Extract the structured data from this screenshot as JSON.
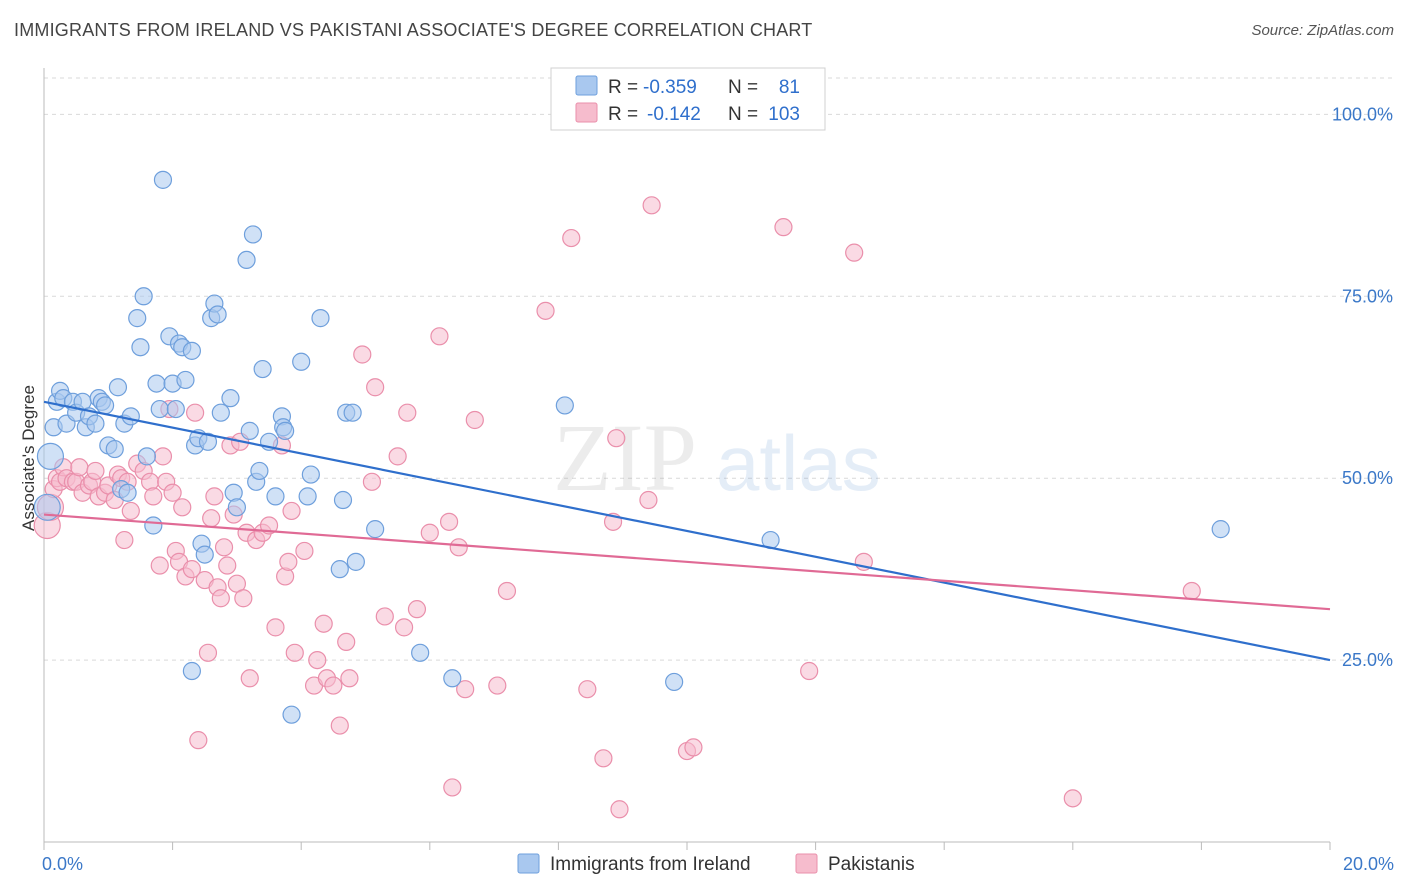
{
  "title": "IMMIGRANTS FROM IRELAND VS PAKISTANI ASSOCIATE'S DEGREE CORRELATION CHART",
  "source": "Source: ZipAtlas.com",
  "colors": {
    "ireland_fill": "#a9c8ef",
    "ireland_stroke": "#6e9fdc",
    "ireland_line": "#2f6fcc",
    "pakistani_fill": "#f6bccd",
    "pakistani_stroke": "#ea8fab",
    "pakistani_line": "#e06a95",
    "value_blue": "#2f6fcc",
    "grid": "#d9d9d9"
  },
  "legend": {
    "rows": [
      {
        "r_label": "R =",
        "r_value": "-0.359",
        "n_label": "N =",
        "n_value": "81"
      },
      {
        "r_label": "R =",
        "r_value": "-0.142",
        "n_label": "N =",
        "n_value": "103"
      }
    ]
  },
  "bottom_legend": {
    "ireland": "Immigrants from Ireland",
    "pakistani": "Pakistanis"
  },
  "watermark": {
    "zip": "ZIP",
    "atlas": "atlas"
  },
  "chart_data": {
    "type": "scatter",
    "title": "IMMIGRANTS FROM IRELAND VS PAKISTANI ASSOCIATE'S DEGREE CORRELATION CHART",
    "xlabel": "",
    "ylabel": "Associate's Degree",
    "xlim": [
      0,
      20
    ],
    "ylim": [
      0,
      105
    ],
    "x_tick_labels": [
      "0.0%",
      "20.0%"
    ],
    "y_ticks": [
      25,
      50,
      75,
      100
    ],
    "y_tick_labels": [
      "25.0%",
      "50.0%",
      "75.0%",
      "100.0%"
    ],
    "grid": true,
    "legend_position": "top-center",
    "series": [
      {
        "name": "Immigrants from Ireland",
        "R": -0.359,
        "N": 81,
        "trend": {
          "x": [
            0,
            20
          ],
          "y": [
            60.5,
            25.0
          ]
        },
        "points": [
          [
            0.05,
            46
          ],
          [
            0.1,
            53
          ],
          [
            0.15,
            57
          ],
          [
            0.2,
            60.5
          ],
          [
            0.25,
            62
          ],
          [
            0.3,
            61
          ],
          [
            0.35,
            57.5
          ],
          [
            0.45,
            60.5
          ],
          [
            0.5,
            59
          ],
          [
            0.6,
            60.5
          ],
          [
            0.65,
            57
          ],
          [
            0.7,
            58.5
          ],
          [
            0.8,
            57.5
          ],
          [
            0.85,
            61
          ],
          [
            0.9,
            60.5
          ],
          [
            0.95,
            60
          ],
          [
            1.0,
            54.5
          ],
          [
            1.1,
            54
          ],
          [
            1.15,
            62.5
          ],
          [
            1.2,
            48.5
          ],
          [
            1.3,
            48
          ],
          [
            1.25,
            57.5
          ],
          [
            1.35,
            58.5
          ],
          [
            1.45,
            72
          ],
          [
            1.5,
            68
          ],
          [
            1.55,
            75
          ],
          [
            1.6,
            53
          ],
          [
            1.7,
            43.5
          ],
          [
            1.75,
            63
          ],
          [
            1.8,
            59.5
          ],
          [
            1.85,
            91
          ],
          [
            1.95,
            69.5
          ],
          [
            2.0,
            63
          ],
          [
            2.05,
            59.5
          ],
          [
            2.1,
            68.5
          ],
          [
            2.15,
            68
          ],
          [
            2.2,
            63.5
          ],
          [
            2.3,
            67.5
          ],
          [
            2.3,
            23.5
          ],
          [
            2.35,
            54.5
          ],
          [
            2.4,
            55.5
          ],
          [
            2.45,
            41
          ],
          [
            2.5,
            39.5
          ],
          [
            2.55,
            55
          ],
          [
            2.6,
            72
          ],
          [
            2.65,
            74
          ],
          [
            2.7,
            72.5
          ],
          [
            2.75,
            59
          ],
          [
            2.9,
            61
          ],
          [
            2.95,
            48
          ],
          [
            3.0,
            46
          ],
          [
            3.15,
            80
          ],
          [
            3.2,
            56.5
          ],
          [
            3.25,
            83.5
          ],
          [
            3.3,
            49.5
          ],
          [
            3.35,
            51
          ],
          [
            3.4,
            65
          ],
          [
            3.5,
            55
          ],
          [
            3.6,
            47.5
          ],
          [
            3.7,
            58.5
          ],
          [
            3.72,
            57
          ],
          [
            3.75,
            56.5
          ],
          [
            3.85,
            17.5
          ],
          [
            4.0,
            66
          ],
          [
            4.1,
            47.5
          ],
          [
            4.15,
            50.5
          ],
          [
            4.3,
            72
          ],
          [
            4.6,
            37.5
          ],
          [
            4.65,
            47
          ],
          [
            4.7,
            59
          ],
          [
            4.8,
            59
          ],
          [
            4.85,
            38.5
          ],
          [
            5.15,
            43
          ],
          [
            5.85,
            26
          ],
          [
            6.35,
            22.5
          ],
          [
            8.1,
            60
          ],
          [
            9.8,
            22
          ],
          [
            11.3,
            41.5
          ],
          [
            18.3,
            43
          ]
        ]
      },
      {
        "name": "Pakistanis",
        "R": -0.142,
        "N": 103,
        "trend": {
          "x": [
            0,
            20
          ],
          "y": [
            45.0,
            32.0
          ]
        },
        "points": [
          [
            0.05,
            43.5
          ],
          [
            0.1,
            46
          ],
          [
            0.15,
            48.5
          ],
          [
            0.2,
            50
          ],
          [
            0.25,
            49.5
          ],
          [
            0.3,
            51.5
          ],
          [
            0.35,
            50
          ],
          [
            0.45,
            49.5
          ],
          [
            0.5,
            49.5
          ],
          [
            0.55,
            51.5
          ],
          [
            0.6,
            48
          ],
          [
            0.7,
            49
          ],
          [
            0.75,
            49.5
          ],
          [
            0.8,
            51
          ],
          [
            0.85,
            47.5
          ],
          [
            0.95,
            48
          ],
          [
            1.0,
            49
          ],
          [
            1.1,
            47
          ],
          [
            1.15,
            50.5
          ],
          [
            1.2,
            50
          ],
          [
            1.25,
            41.5
          ],
          [
            1.3,
            49.5
          ],
          [
            1.35,
            45.5
          ],
          [
            1.45,
            52
          ],
          [
            1.55,
            51
          ],
          [
            1.65,
            49.5
          ],
          [
            1.7,
            47.5
          ],
          [
            1.8,
            38
          ],
          [
            1.85,
            53
          ],
          [
            1.9,
            49.5
          ],
          [
            1.95,
            59.5
          ],
          [
            2.0,
            48
          ],
          [
            2.05,
            40
          ],
          [
            2.1,
            38.5
          ],
          [
            2.15,
            46
          ],
          [
            2.2,
            36.5
          ],
          [
            2.3,
            37.5
          ],
          [
            2.35,
            59
          ],
          [
            2.4,
            14
          ],
          [
            2.5,
            36
          ],
          [
            2.55,
            26
          ],
          [
            2.6,
            44.5
          ],
          [
            2.65,
            47.5
          ],
          [
            2.7,
            35
          ],
          [
            2.75,
            33.5
          ],
          [
            2.8,
            40.5
          ],
          [
            2.85,
            38
          ],
          [
            2.9,
            54.5
          ],
          [
            2.95,
            45
          ],
          [
            3.0,
            35.5
          ],
          [
            3.05,
            55
          ],
          [
            3.1,
            33.5
          ],
          [
            3.15,
            42.5
          ],
          [
            3.2,
            22.5
          ],
          [
            3.3,
            41.5
          ],
          [
            3.4,
            42.5
          ],
          [
            3.5,
            43.5
          ],
          [
            3.6,
            29.5
          ],
          [
            3.7,
            54.5
          ],
          [
            3.75,
            36.5
          ],
          [
            3.8,
            38.5
          ],
          [
            3.85,
            45.5
          ],
          [
            3.9,
            26
          ],
          [
            4.05,
            40
          ],
          [
            4.2,
            21.5
          ],
          [
            4.25,
            25
          ],
          [
            4.35,
            30
          ],
          [
            4.4,
            22.5
          ],
          [
            4.5,
            21.5
          ],
          [
            4.6,
            16
          ],
          [
            4.7,
            27.5
          ],
          [
            4.75,
            22.5
          ],
          [
            4.95,
            67
          ],
          [
            5.1,
            49.5
          ],
          [
            5.15,
            62.5
          ],
          [
            5.3,
            31
          ],
          [
            5.5,
            53
          ],
          [
            5.6,
            29.5
          ],
          [
            5.65,
            59
          ],
          [
            5.8,
            32
          ],
          [
            6.0,
            42.5
          ],
          [
            6.15,
            69.5
          ],
          [
            6.3,
            44
          ],
          [
            6.35,
            7.5
          ],
          [
            6.45,
            40.5
          ],
          [
            6.55,
            21
          ],
          [
            6.7,
            58
          ],
          [
            7.05,
            21.5
          ],
          [
            7.2,
            34.5
          ],
          [
            7.8,
            73
          ],
          [
            8.2,
            83
          ],
          [
            8.45,
            21
          ],
          [
            8.7,
            11.5
          ],
          [
            8.85,
            44
          ],
          [
            8.9,
            55.5
          ],
          [
            8.95,
            4.5
          ],
          [
            9.4,
            47
          ],
          [
            9.45,
            87.5
          ],
          [
            10.0,
            12.5
          ],
          [
            10.1,
            13
          ],
          [
            11.5,
            84.5
          ],
          [
            11.9,
            23.5
          ],
          [
            12.6,
            81
          ],
          [
            12.75,
            38.5
          ],
          [
            16.0,
            6
          ],
          [
            17.85,
            34.5
          ]
        ]
      }
    ]
  }
}
